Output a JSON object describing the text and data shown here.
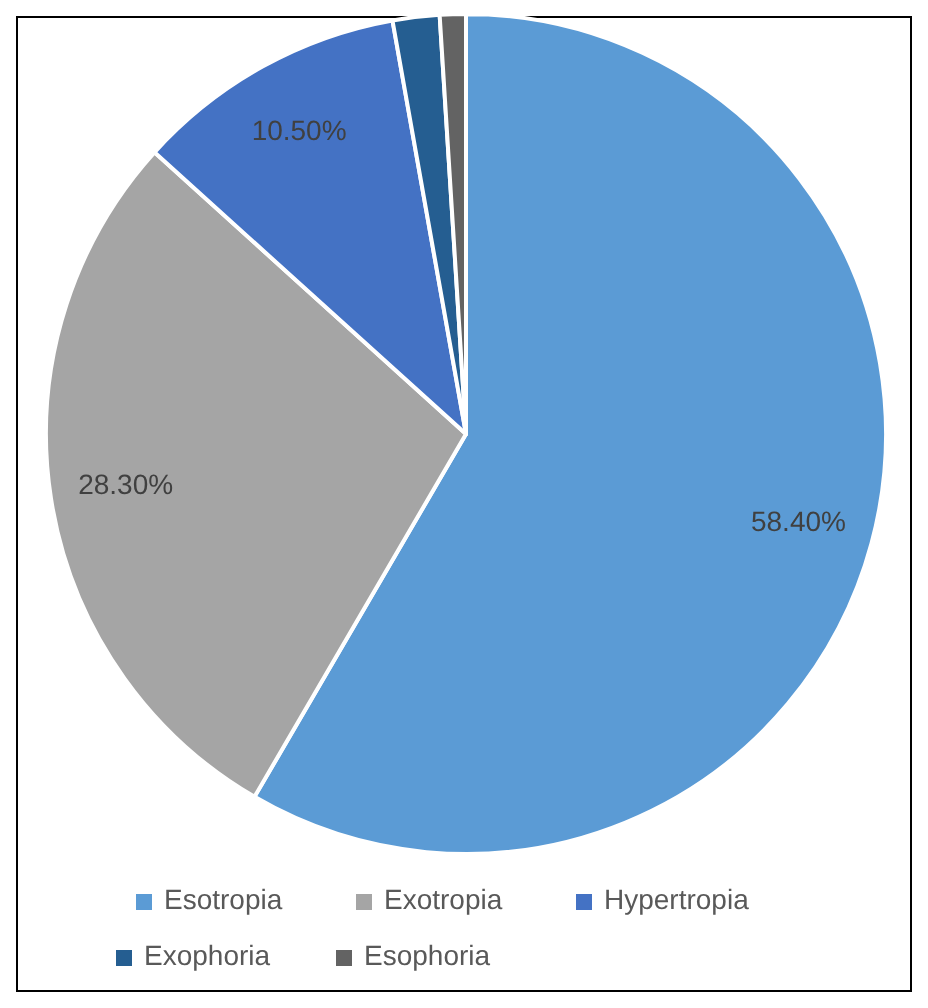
{
  "chart_data": {
    "type": "pie",
    "categories": [
      "Esotropia",
      "Exotropia",
      "Hypertropia",
      "Exophoria",
      "Esophoria"
    ],
    "values": [
      58.4,
      28.3,
      10.5,
      1.8,
      1.0
    ],
    "colors": [
      "#5b9bd5",
      "#a5a5a5",
      "#4472c4",
      "#255e91",
      "#636363"
    ],
    "value_labels": [
      "58.40%",
      "28.30%",
      "10.50%",
      null,
      null
    ],
    "legend": "bottom"
  }
}
